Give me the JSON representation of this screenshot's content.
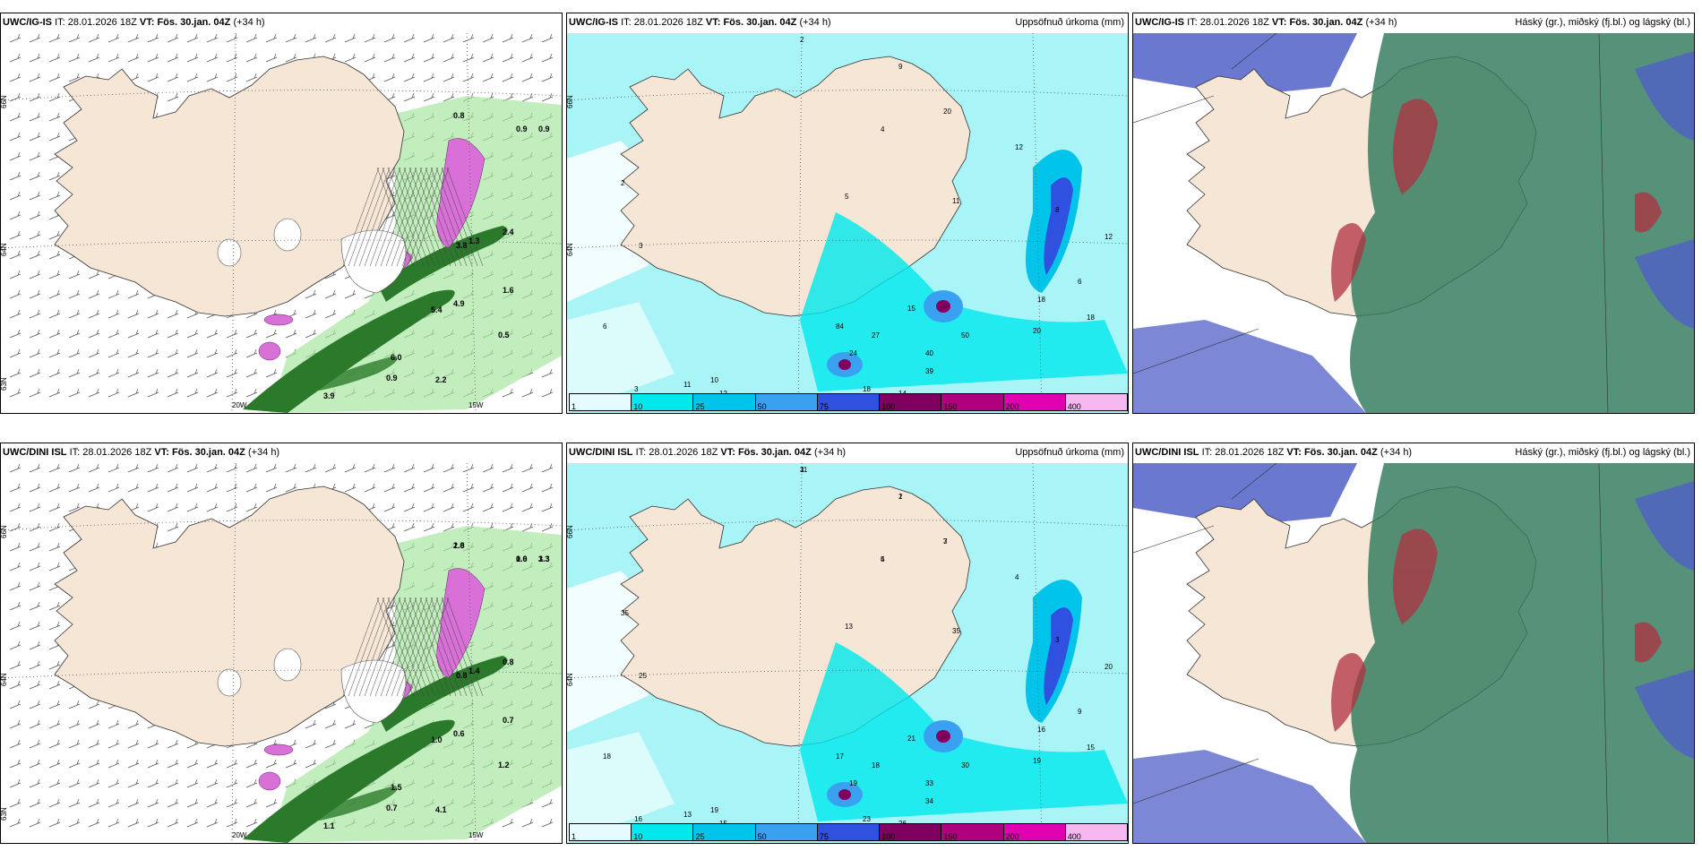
{
  "panels": [
    {
      "model": "UWC/IG-IS",
      "it_label": "IT:",
      "it_value": "28.01.2026 18Z",
      "vt_label": "VT:",
      "vt_value": "Fös. 30.jan. 04Z",
      "lead": "(+34 h)",
      "right_title": "",
      "kind": "wind",
      "lon_labels": [
        "20W",
        "15W"
      ],
      "lat_labels": [
        "66N",
        "64N",
        "63N"
      ],
      "values": [
        "0.9",
        "0.9",
        "0.8",
        "2.4",
        "1.6",
        "0.5",
        "6.0",
        "3.9",
        "2.2",
        "5.4",
        "4.9",
        "3.8",
        "1.3",
        "0.9"
      ]
    },
    {
      "model": "UWC/IG-IS",
      "it_label": "IT:",
      "it_value": "28.01.2026 18Z",
      "vt_label": "VT:",
      "vt_value": "Fös. 30.jan. 04Z",
      "lead": "(+34 h)",
      "right_title": "Uppsöfnuð úrkoma (mm)",
      "kind": "precip",
      "lon_labels": [],
      "lat_labels": [
        "66N",
        "64N"
      ],
      "values": [
        "2",
        "9",
        "4",
        "20",
        "5",
        "12",
        "11",
        "8",
        "12",
        "6",
        "18",
        "20",
        "18",
        "50",
        "40",
        "39",
        "24",
        "27",
        "84",
        "15",
        "14",
        "18",
        "2",
        "3",
        "6",
        "3",
        "11",
        "10",
        "12"
      ]
    },
    {
      "model": "UWC/IG-IS",
      "it_label": "IT:",
      "it_value": "28.01.2026 18Z",
      "vt_label": "VT:",
      "vt_value": "Fös. 30.jan. 04Z",
      "lead": "(+34 h)",
      "right_title": "Háský (gr.), miðský (fj.bl.) og lágský (bl.)",
      "kind": "cloud",
      "lon_labels": [],
      "lat_labels": [],
      "values": []
    },
    {
      "model": "UWC/DINI ISL",
      "it_label": "IT:",
      "it_value": "28.01.2026 18Z",
      "vt_label": "VT:",
      "vt_value": "Fös. 30.jan. 04Z",
      "lead": "(+34 h)",
      "right_title": "",
      "kind": "wind",
      "lon_labels": [
        "20W",
        "15W"
      ],
      "lat_labels": [
        "66N",
        "64N",
        "63N"
      ],
      "values": [
        "1.0",
        "1.3",
        "1.0",
        "0.8",
        "0.7",
        "1.2",
        "1.5",
        "1.1",
        "4.1",
        "1.0",
        "0.6",
        "0.8",
        "1.4",
        "0.7",
        "0.6",
        "3.3",
        "2.8"
      ]
    },
    {
      "model": "UWC/DINI ISL",
      "it_label": "IT:",
      "it_value": "28.01.2026 18Z",
      "vt_label": "VT:",
      "vt_value": "Fös. 30.jan. 04Z",
      "lead": "(+34 h)",
      "right_title": "Uppsöfnuð úrkoma (mm)",
      "kind": "precip",
      "lon_labels": [],
      "lat_labels": [
        "66N",
        "64N"
      ],
      "values": [
        "3",
        "1",
        "5",
        "3",
        "13",
        "4",
        "35",
        "3",
        "20",
        "9",
        "15",
        "19",
        "16",
        "30",
        "33",
        "34",
        "19",
        "18",
        "17",
        "21",
        "26",
        "23",
        "35",
        "25",
        "18",
        "16",
        "13",
        "19",
        "15",
        "11",
        "2",
        "4",
        "7"
      ]
    },
    {
      "model": "UWC/DINI ISL",
      "it_label": "IT:",
      "it_value": "28.01.2026 18Z",
      "vt_label": "VT:",
      "vt_value": "Fös. 30.jan. 04Z",
      "lead": "(+34 h)",
      "right_title": "Háský (gr.), miðský (fj.bl.) og lágský (bl.)",
      "kind": "cloud",
      "lon_labels": [],
      "lat_labels": [],
      "values": []
    }
  ],
  "precip_legend": {
    "labels": [
      "1",
      "10",
      "25",
      "50",
      "75",
      "100",
      "150",
      "200",
      "400"
    ],
    "colors": [
      "#e6fbff",
      "#00e8ee",
      "#00c4ea",
      "#3aa0f0",
      "#3050e0",
      "#800060",
      "#b00080",
      "#e000b0",
      "#f5b8f0"
    ]
  },
  "colors": {
    "land": "#f5e6d6",
    "sea_precip": "#a8f4f6",
    "wind_green": "#2b7a2b",
    "wind_light": "#a8e6a0",
    "snow_purple": "#d870d8",
    "cloud_high": "#2f7a5c",
    "cloud_mid": "#5060c8",
    "cloud_low": "#b03040"
  }
}
